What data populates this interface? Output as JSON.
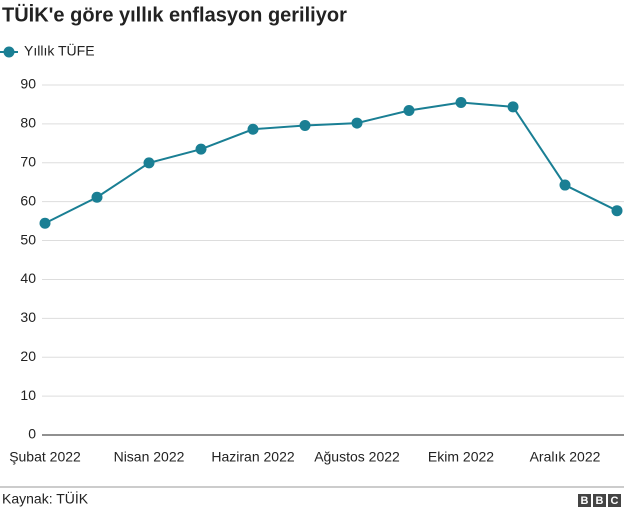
{
  "chart_data": {
    "type": "line",
    "title": "TÜİK'e göre yıllık enflasyon geriliyor",
    "categories": [
      "Şubat 2022",
      null,
      "Nisan 2022",
      null,
      "Haziran 2022",
      null,
      "Ağustos 2022",
      null,
      "Ekim 2022",
      null,
      "Aralık 2022",
      null
    ],
    "series": [
      {
        "name": "Yıllık TÜFE",
        "color": "#1a7f94",
        "values": [
          54.44,
          61.14,
          69.97,
          73.5,
          78.62,
          79.6,
          80.21,
          83.45,
          85.51,
          84.39,
          64.27,
          57.68
        ]
      }
    ],
    "ylim": [
      0,
      90
    ],
    "yticks": [
      0,
      10,
      20,
      30,
      40,
      50,
      60,
      70,
      80,
      90
    ],
    "grid": true,
    "source": "Kaynak: TÜİK",
    "logo": [
      "B",
      "B",
      "C"
    ]
  }
}
